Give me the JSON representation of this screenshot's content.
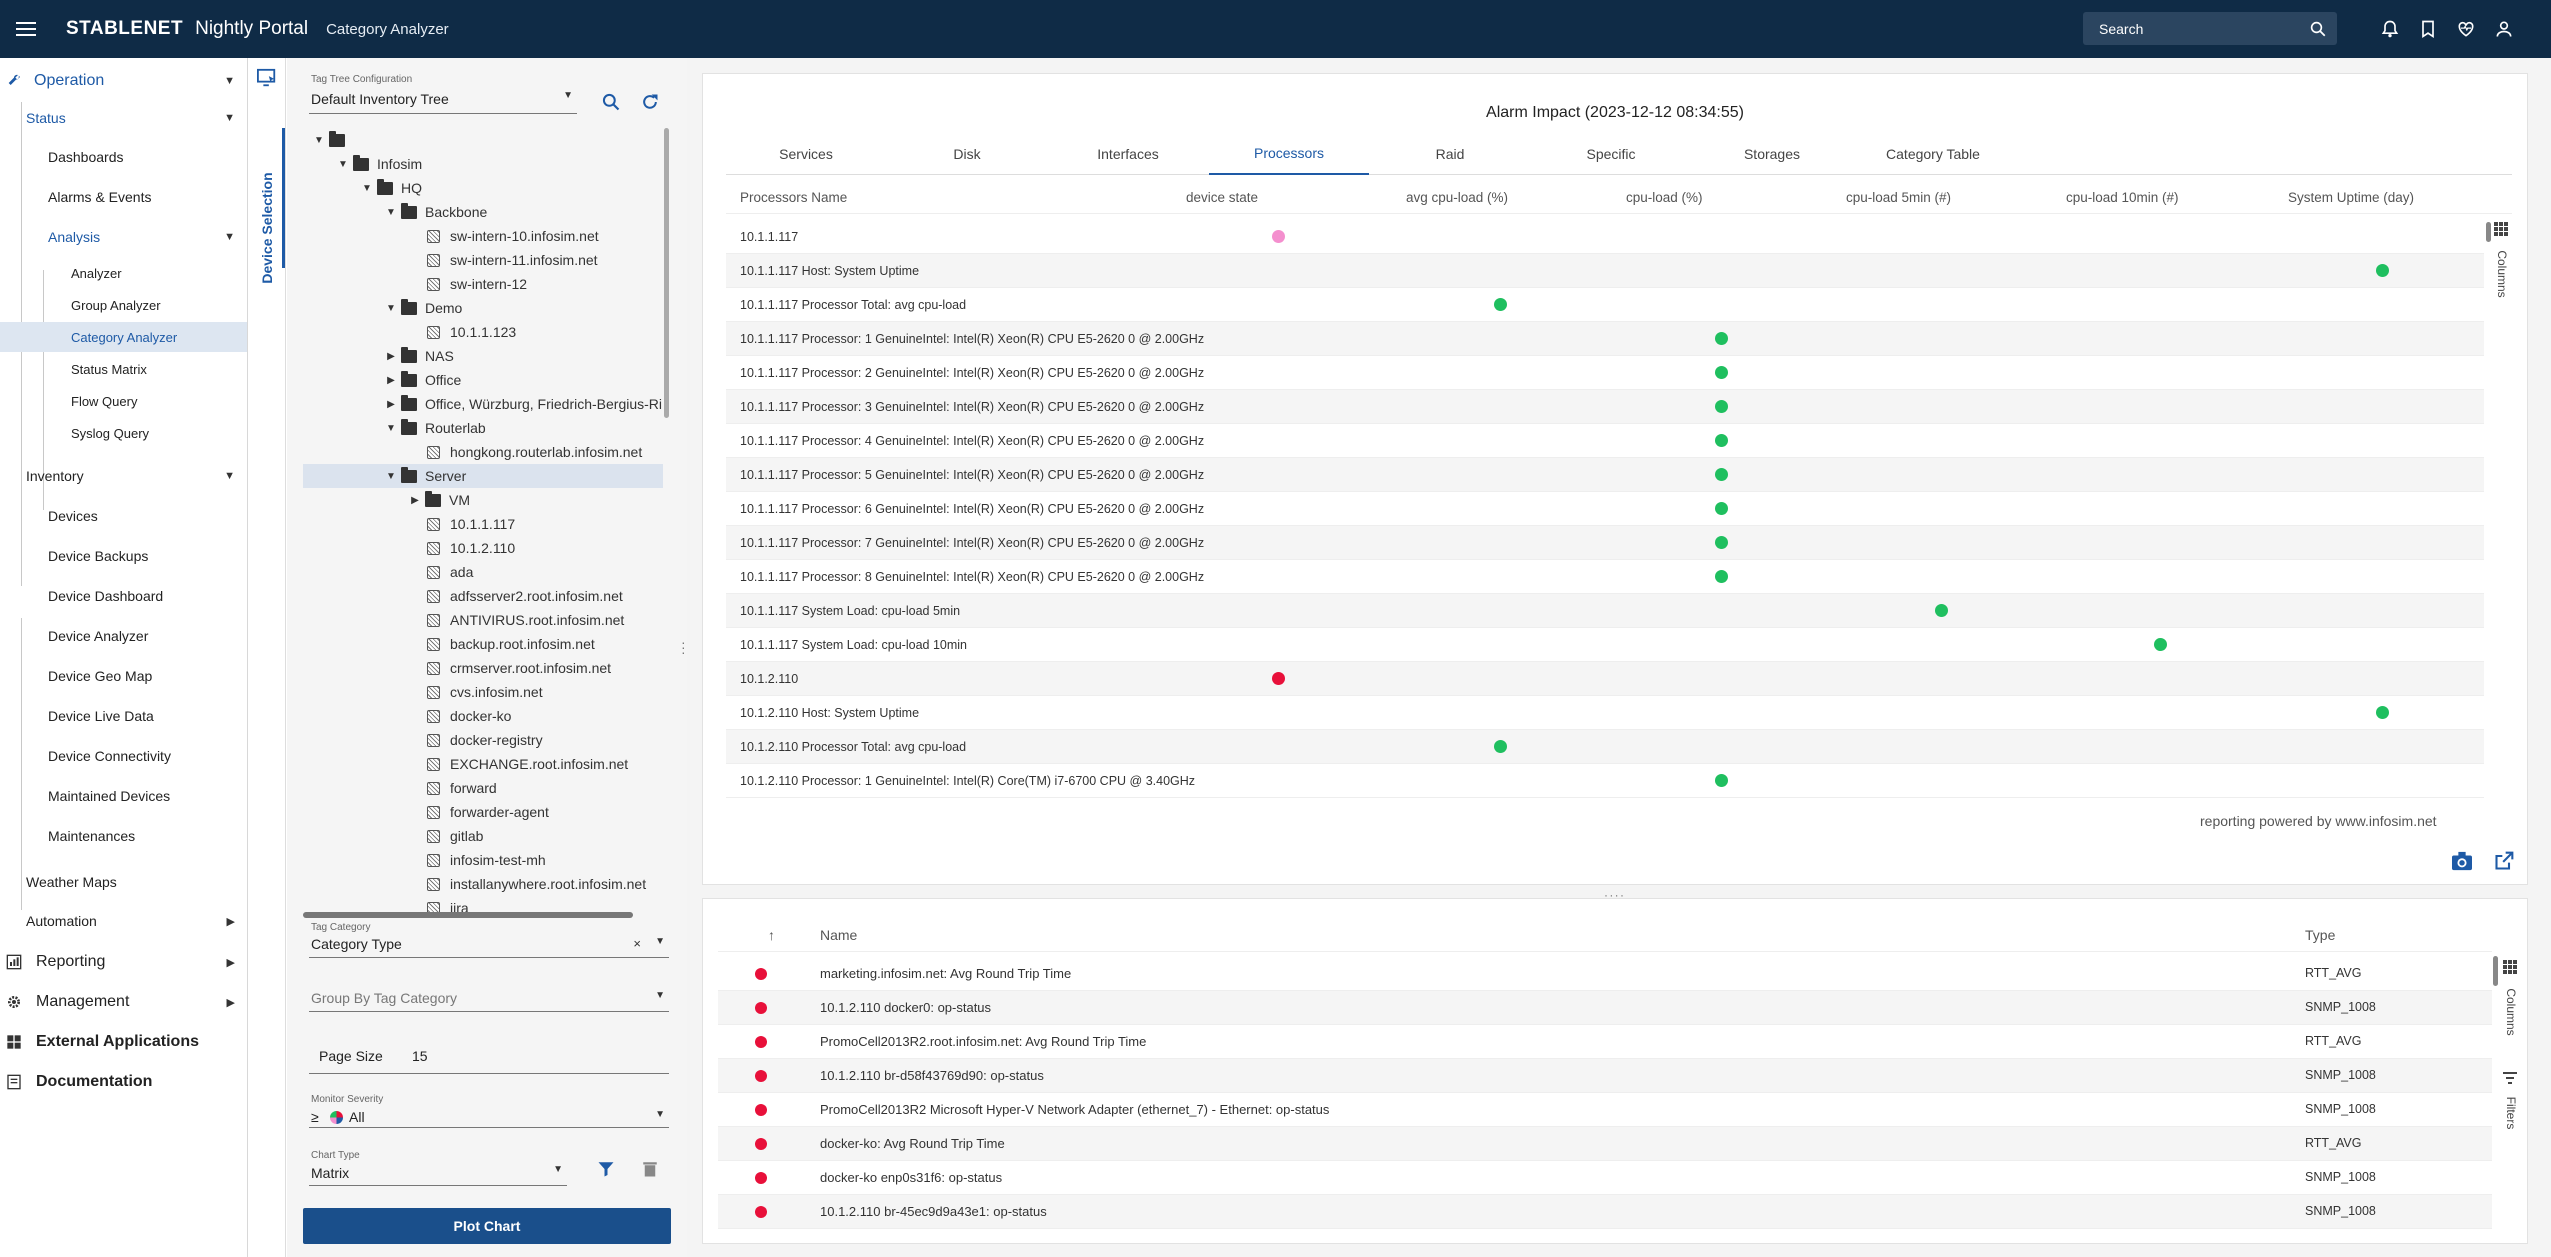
{
  "topbar": {
    "brand": "STABLENET",
    "portal": "Nightly Portal",
    "page": "Category Analyzer",
    "search_placeholder": "Search",
    "icons": [
      "bell-icon",
      "bookmark-icon",
      "heart-pulse-icon",
      "account-icon"
    ]
  },
  "nav": {
    "operation": "Operation",
    "status": "Status",
    "dashboards": "Dashboards",
    "alarms": "Alarms & Events",
    "analysis": "Analysis",
    "analyzer": "Analyzer",
    "group_analyzer": "Group Analyzer",
    "category_analyzer": "Category Analyzer",
    "status_matrix": "Status Matrix",
    "flow_query": "Flow Query",
    "syslog_query": "Syslog Query",
    "inventory": "Inventory",
    "devices": "Devices",
    "device_backups": "Device Backups",
    "device_dashboard": "Device Dashboard",
    "device_analyzer": "Device Analyzer",
    "device_geo_map": "Device Geo Map",
    "device_live_data": "Device Live Data",
    "device_connectivity": "Device Connectivity",
    "maintained_devices": "Maintained Devices",
    "maintenances": "Maintenances",
    "weather_maps": "Weather Maps",
    "automation": "Automation",
    "reporting": "Reporting",
    "management": "Management",
    "external_applications": "External Applications",
    "documentation": "Documentation"
  },
  "selection": {
    "tab_label": "Device Selection",
    "tree_config_label": "Tag Tree Configuration",
    "tree_config_value": "Default Inventory Tree",
    "tree": [
      {
        "label": "",
        "type": "folder",
        "depth": 0,
        "arrow": "▼"
      },
      {
        "label": "Infosim",
        "type": "folder",
        "depth": 1,
        "arrow": "▼"
      },
      {
        "label": "HQ",
        "type": "folder",
        "depth": 2,
        "arrow": "▼"
      },
      {
        "label": "Backbone",
        "type": "folder",
        "depth": 3,
        "arrow": "▼"
      },
      {
        "label": "sw-intern-10.infosim.net",
        "type": "device",
        "depth": 4
      },
      {
        "label": "sw-intern-11.infosim.net",
        "type": "device",
        "depth": 4
      },
      {
        "label": "sw-intern-12",
        "type": "device",
        "depth": 4
      },
      {
        "label": "Demo",
        "type": "folder",
        "depth": 3,
        "arrow": "▼"
      },
      {
        "label": "10.1.1.123",
        "type": "device",
        "depth": 4
      },
      {
        "label": "NAS",
        "type": "folder",
        "depth": 3,
        "arrow": "▶"
      },
      {
        "label": "Office",
        "type": "folder",
        "depth": 3,
        "arrow": "▶"
      },
      {
        "label": "Office, Würzburg, Friedrich-Bergius-Ri",
        "type": "folder",
        "depth": 3,
        "arrow": "▶"
      },
      {
        "label": "Routerlab",
        "type": "folder",
        "depth": 3,
        "arrow": "▼"
      },
      {
        "label": "hongkong.routerlab.infosim.net",
        "type": "device",
        "depth": 4
      },
      {
        "label": "Server",
        "type": "folder",
        "depth": 3,
        "arrow": "▼",
        "selected": true
      },
      {
        "label": "VM",
        "type": "folder",
        "depth": 4,
        "arrow": "▶"
      },
      {
        "label": "10.1.1.117",
        "type": "device",
        "depth": 4
      },
      {
        "label": "10.1.2.110",
        "type": "device",
        "depth": 4
      },
      {
        "label": "ada",
        "type": "device",
        "depth": 4
      },
      {
        "label": "adfsserver2.root.infosim.net",
        "type": "device",
        "depth": 4
      },
      {
        "label": "ANTIVIRUS.root.infosim.net",
        "type": "device",
        "depth": 4
      },
      {
        "label": "backup.root.infosim.net",
        "type": "device",
        "depth": 4
      },
      {
        "label": "crmserver.root.infosim.net",
        "type": "device",
        "depth": 4
      },
      {
        "label": "cvs.infosim.net",
        "type": "device",
        "depth": 4
      },
      {
        "label": "docker-ko",
        "type": "device",
        "depth": 4
      },
      {
        "label": "docker-registry",
        "type": "device",
        "depth": 4
      },
      {
        "label": "EXCHANGE.root.infosim.net",
        "type": "device",
        "depth": 4
      },
      {
        "label": "forward",
        "type": "device",
        "depth": 4
      },
      {
        "label": "forwarder-agent",
        "type": "device",
        "depth": 4
      },
      {
        "label": "gitlab",
        "type": "device",
        "depth": 4
      },
      {
        "label": "infosim-test-mh",
        "type": "device",
        "depth": 4
      },
      {
        "label": "installanywhere.root.infosim.net",
        "type": "device",
        "depth": 4
      },
      {
        "label": "jira",
        "type": "device",
        "depth": 4
      }
    ],
    "tag_category_label": "Tag Category",
    "tag_category_value": "Category Type",
    "group_by_placeholder": "Group By Tag Category",
    "page_size_label": "Page Size",
    "page_size_value": "15",
    "monitor_severity_label": "Monitor Severity",
    "monitor_severity_op": "≥",
    "monitor_severity_value": "All",
    "chart_type_label": "Chart Type",
    "chart_type_value": "Matrix",
    "plot_button": "Plot Chart"
  },
  "matrix": {
    "title": "Alarm Impact (2023-12-12 08:34:55)",
    "tabs": [
      "Services",
      "Disk",
      "Interfaces",
      "Processors",
      "Raid",
      "Specific",
      "Storages",
      "Category Table"
    ],
    "active_tab": "Processors",
    "columns": [
      "Processors Name",
      "device state",
      "avg cpu-load (%)",
      "cpu-load (%)",
      "cpu-load 5min (#)",
      "cpu-load 10min (#)",
      "System Uptime (day)"
    ],
    "rows": [
      {
        "name": "10.1.1.117",
        "col": 1,
        "color": "#f48fce"
      },
      {
        "name": "10.1.1.117 Host: System Uptime",
        "col": 6,
        "color": "#1fbf5f"
      },
      {
        "name": "10.1.1.117 Processor Total: avg cpu-load",
        "col": 2,
        "color": "#1fbf5f"
      },
      {
        "name": "10.1.1.117 Processor: 1 GenuineIntel: Intel(R) Xeon(R) CPU E5-2620 0 @ 2.00GHz",
        "col": 3,
        "color": "#1fbf5f"
      },
      {
        "name": "10.1.1.117 Processor: 2 GenuineIntel: Intel(R) Xeon(R) CPU E5-2620 0 @ 2.00GHz",
        "col": 3,
        "color": "#1fbf5f"
      },
      {
        "name": "10.1.1.117 Processor: 3 GenuineIntel: Intel(R) Xeon(R) CPU E5-2620 0 @ 2.00GHz",
        "col": 3,
        "color": "#1fbf5f"
      },
      {
        "name": "10.1.1.117 Processor: 4 GenuineIntel: Intel(R) Xeon(R) CPU E5-2620 0 @ 2.00GHz",
        "col": 3,
        "color": "#1fbf5f"
      },
      {
        "name": "10.1.1.117 Processor: 5 GenuineIntel: Intel(R) Xeon(R) CPU E5-2620 0 @ 2.00GHz",
        "col": 3,
        "color": "#1fbf5f"
      },
      {
        "name": "10.1.1.117 Processor: 6 GenuineIntel: Intel(R) Xeon(R) CPU E5-2620 0 @ 2.00GHz",
        "col": 3,
        "color": "#1fbf5f"
      },
      {
        "name": "10.1.1.117 Processor: 7 GenuineIntel: Intel(R) Xeon(R) CPU E5-2620 0 @ 2.00GHz",
        "col": 3,
        "color": "#1fbf5f"
      },
      {
        "name": "10.1.1.117 Processor: 8 GenuineIntel: Intel(R) Xeon(R) CPU E5-2620 0 @ 2.00GHz",
        "col": 3,
        "color": "#1fbf5f"
      },
      {
        "name": "10.1.1.117 System Load: cpu-load 5min",
        "col": 4,
        "color": "#1fbf5f"
      },
      {
        "name": "10.1.1.117 System Load: cpu-load 10min",
        "col": 5,
        "color": "#1fbf5f"
      },
      {
        "name": "10.1.2.110",
        "col": 1,
        "color": "#e8103a"
      },
      {
        "name": "10.1.2.110 Host: System Uptime",
        "col": 6,
        "color": "#1fbf5f"
      },
      {
        "name": "10.1.2.110 Processor Total: avg cpu-load",
        "col": 2,
        "color": "#1fbf5f"
      },
      {
        "name": "10.1.2.110 Processor: 1 GenuineIntel: Intel(R) Core(TM) i7-6700 CPU @ 3.40GHz",
        "col": 3,
        "color": "#1fbf5f"
      }
    ],
    "columns_side_label": "Columns",
    "footer": "reporting powered by www.infosim.net"
  },
  "alarms": {
    "columns": [
      "Name",
      "Type"
    ],
    "rows": [
      {
        "name": "marketing.infosim.net: Avg Round Trip Time",
        "type": "RTT_AVG"
      },
      {
        "name": "10.1.2.110 docker0: op-status",
        "type": "SNMP_1008"
      },
      {
        "name": "PromoCell2013R2.root.infosim.net: Avg Round Trip Time",
        "type": "RTT_AVG"
      },
      {
        "name": "10.1.2.110 br-d58f43769d90: op-status",
        "type": "SNMP_1008"
      },
      {
        "name": "PromoCell2013R2 Microsoft Hyper-V Network Adapter (ethernet_7) - Ethernet: op-status",
        "type": "SNMP_1008"
      },
      {
        "name": "docker-ko: Avg Round Trip Time",
        "type": "RTT_AVG"
      },
      {
        "name": "docker-ko enp0s31f6: op-status",
        "type": "SNMP_1008"
      },
      {
        "name": "10.1.2.110 br-45ec9d9a43e1: op-status",
        "type": "SNMP_1008"
      }
    ],
    "columns_side_label": "Columns",
    "filters_side_label": "Filters"
  }
}
